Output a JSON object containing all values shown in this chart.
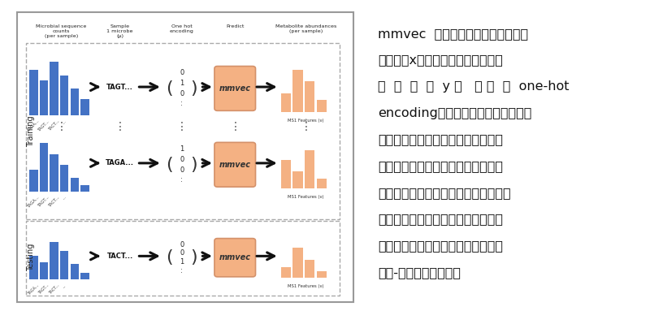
{
  "fig_width": 8.0,
  "fig_height": 3.83,
  "bg_color": "#ffffff",
  "outer_box_color": "#888888",
  "dashed_color": "#aaaaaa",
  "blue_bar_color": "#4472C4",
  "orange_color": "#F4B183",
  "orange_box_color": "#F4B183",
  "orange_box_edge": "#d4916a",
  "arrow_color": "#111111",
  "training_label": "Training",
  "testing_label": "Testing",
  "col_headers": [
    "Microbial sequence\ncounts\n(per sample)",
    "Sample\n1 microbe\n(μ)",
    "One hot\nencoding",
    "Predict",
    "Metabolite abundances\n(per sample)"
  ],
  "row1_seq": "TAGT...",
  "row1_vec": [
    "0",
    "1",
    "0",
    ":"
  ],
  "row2_seq": "TAGA...",
  "row2_vec": [
    "1",
    "0",
    "0",
    ":"
  ],
  "row3_seq": "TACT...",
  "row3_vec": [
    "0",
    "0",
    "1",
    ":"
  ],
  "ms1_label": "MS1 Features (ν)",
  "row1_bars_blue": [
    0.85,
    0.65,
    1.0,
    0.75,
    0.5,
    0.3
  ],
  "row2_bars_blue": [
    0.4,
    0.9,
    0.7,
    0.5,
    0.25,
    0.12
  ],
  "row3_bars_blue": [
    0.55,
    0.4,
    0.85,
    0.65,
    0.35,
    0.15
  ],
  "row1_bars_orange": [
    0.4,
    0.9,
    0.65,
    0.25
  ],
  "row2_bars_orange": [
    0.6,
    0.35,
    0.8,
    0.2
  ],
  "row3_bars_orange": [
    0.25,
    0.75,
    0.45,
    0.15
  ],
  "row1_xlabels": [
    "TAGA...",
    "TAGT...",
    "TACT...",
    "..."
  ],
  "row2_xlabels": [
    "TAGA...",
    "TAGT...",
    "TACT...",
    "..."
  ],
  "row3_xlabels": [
    "TAGA...",
    "TAGT...",
    "TACT...",
    "..."
  ],
  "text_line1": "mmvec  分析通过给定单个输入微生",
  "text_line2": "物序列（x）的情况下预测代谢物响",
  "text_line3": "应  强  度  （  y ）   （ 称  为  one-hot",
  "text_line4": "encoding）。该训练过程在给定输入",
  "text_line5": "微生物序列的条件下估算某种代谢物",
  "text_line6": "出现的概率，通过优化预测关联与真",
  "text_line7": "实关联的误差对模型的权重进行调整，",
  "text_line8": "在保留样本上进行交叉验证以评估过",
  "text_line9": "度拟合。通过迭代训练，进而预测微",
  "text_line10": "生物-代谢物关联关系。",
  "text_fontsize": 11.5
}
